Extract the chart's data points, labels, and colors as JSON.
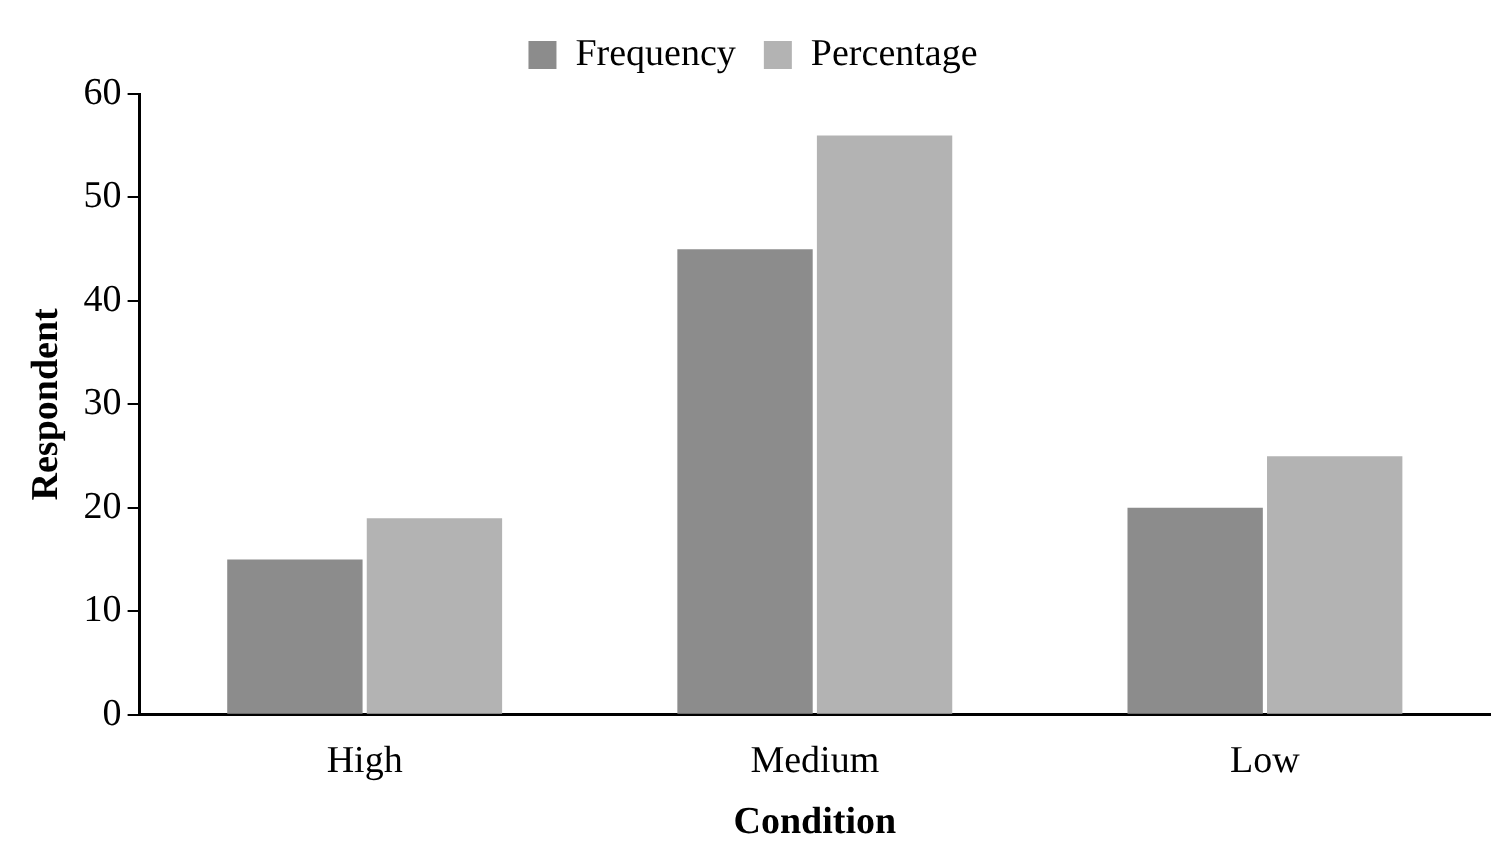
{
  "chart_data": {
    "type": "bar",
    "xlabel": "Condition",
    "ylabel": "Respondent",
    "categories": [
      "High",
      "Medium",
      "Low"
    ],
    "series": [
      {
        "name": "Frequency",
        "color": "#8c8c8c",
        "values": [
          15,
          45,
          20
        ]
      },
      {
        "name": "Percentage",
        "color": "#b3b3b3",
        "values": [
          19,
          56,
          25
        ]
      }
    ],
    "ylim": [
      0,
      60
    ],
    "yticks": [
      0,
      10,
      20,
      30,
      40,
      50,
      60
    ],
    "grid": false,
    "legend": "top"
  }
}
